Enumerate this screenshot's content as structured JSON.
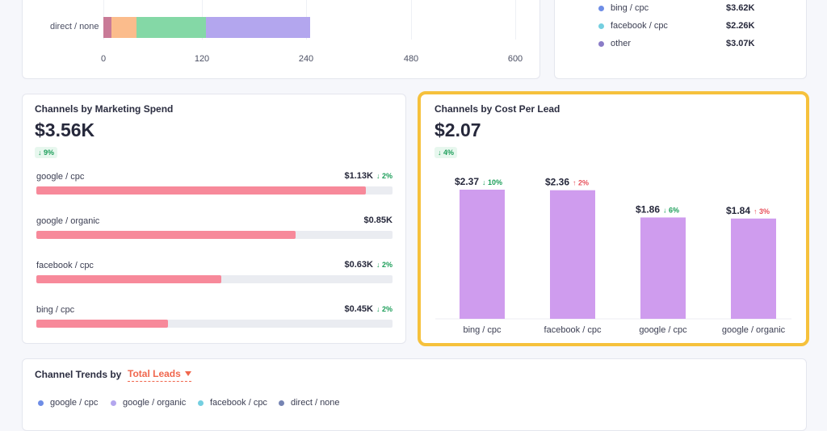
{
  "top_chart": {
    "row_label": "direct / none",
    "ticks": [
      "0",
      "120",
      "240",
      "480",
      "600"
    ],
    "tick_values": [
      0,
      120,
      240,
      480,
      600
    ],
    "segments": [
      {
        "from": 0,
        "to": 10,
        "color": "#c97a97"
      },
      {
        "from": 10,
        "to": 40,
        "color": "#fbbc8c"
      },
      {
        "from": 40,
        "to": 125,
        "color": "#84d8a6"
      },
      {
        "from": 125,
        "to": 250,
        "color": "#b3a6ee"
      }
    ]
  },
  "top_legend": [
    {
      "label": "bing / cpc",
      "value": "$3.62K",
      "color": "#6e8de6"
    },
    {
      "label": "facebook / cpc",
      "value": "$2.26K",
      "color": "#74cfe0"
    },
    {
      "label": "other",
      "value": "$3.07K",
      "color": "#8a7cc7"
    }
  ],
  "spend": {
    "title": "Channels by Marketing Spend",
    "value": "$3.56K",
    "delta": "↓ 9%",
    "rows": [
      {
        "name": "google / cpc",
        "value": "$1.13K",
        "delta": "↓ 2%",
        "fraction": 0.926
      },
      {
        "name": "google / organic",
        "value": "$0.85K",
        "delta": "",
        "fraction": 0.727
      },
      {
        "name": "facebook / cpc",
        "value": "$0.63K",
        "delta": "↓ 2%",
        "fraction": 0.52
      },
      {
        "name": "bing / cpc",
        "value": "$0.45K",
        "delta": "↓ 2%",
        "fraction": 0.369
      }
    ]
  },
  "cpl": {
    "title": "Channels by Cost Per Lead",
    "value": "$2.07",
    "delta": "↓ 4%",
    "chart_data": {
      "type": "bar",
      "categories": [
        "bing / cpc",
        "facebook / cpc",
        "google / cpc",
        "google / organic"
      ],
      "values": [
        2.37,
        2.36,
        1.86,
        1.84
      ],
      "value_labels": [
        "$2.37",
        "$2.36",
        "$1.86",
        "$1.84"
      ],
      "deltas": [
        "↓ 10%",
        "↑ 2%",
        "↓ 6%",
        "↑ 3%"
      ],
      "delta_colors": [
        "#1c9e59",
        "#e8505b",
        "#1c9e59",
        "#e8505b"
      ],
      "bar_color": "#cf9cee",
      "ylim": [
        0,
        3.0
      ]
    }
  },
  "trends": {
    "title": "Channel Trends by",
    "metric": "Total Leads",
    "legend": [
      {
        "label": "google / cpc",
        "color": "#6e8de6"
      },
      {
        "label": "google / organic",
        "color": "#b3a6ee"
      },
      {
        "label": "facebook / cpc",
        "color": "#74cfe0"
      },
      {
        "label": "direct / none",
        "color": "#7684b3"
      }
    ]
  }
}
